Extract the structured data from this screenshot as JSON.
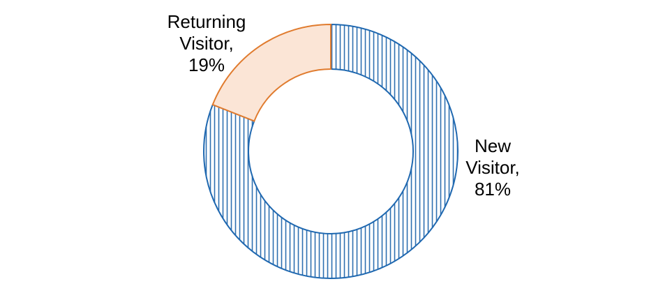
{
  "chart_data": {
    "type": "donut",
    "title": "",
    "slices": [
      {
        "name": "New Visitor",
        "value": 81,
        "label_lines": [
          "New",
          "Visitor,",
          "81%"
        ],
        "fill": "#ffffff",
        "pattern": "vertical-stripes",
        "pattern_color": "#2e6fb0",
        "stroke": "#1f68b0"
      },
      {
        "name": "Returning Visitor",
        "value": 19,
        "label_lines": [
          "Returning",
          "Visitor,",
          "19%"
        ],
        "fill": "#fbe5d6",
        "pattern": "solid",
        "stroke": "#e07b2e"
      }
    ],
    "start_angle_deg": 0,
    "direction": "clockwise",
    "legend": "none",
    "data_labels": "outside"
  }
}
